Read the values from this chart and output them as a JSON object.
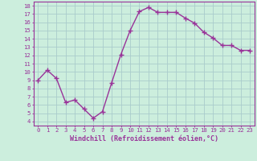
{
  "x": [
    0,
    1,
    2,
    3,
    4,
    5,
    6,
    7,
    8,
    9,
    10,
    11,
    12,
    13,
    14,
    15,
    16,
    17,
    18,
    19,
    20,
    21,
    22,
    23
  ],
  "y": [
    9.0,
    10.2,
    9.2,
    6.3,
    6.6,
    5.5,
    4.4,
    5.2,
    8.7,
    12.1,
    15.0,
    17.3,
    17.8,
    17.2,
    17.2,
    17.2,
    16.5,
    15.9,
    14.8,
    14.1,
    13.2,
    13.2,
    12.6,
    12.6
  ],
  "line_color": "#993399",
  "marker": "+",
  "marker_size": 4,
  "bg_color": "#cceedd",
  "grid_color": "#aacccc",
  "xlabel": "Windchill (Refroidissement éolien,°C)",
  "xlim": [
    -0.5,
    23.5
  ],
  "ylim": [
    3.5,
    18.5
  ],
  "yticks": [
    4,
    5,
    6,
    7,
    8,
    9,
    10,
    11,
    12,
    13,
    14,
    15,
    16,
    17,
    18
  ],
  "xticks": [
    0,
    1,
    2,
    3,
    4,
    5,
    6,
    7,
    8,
    9,
    10,
    11,
    12,
    13,
    14,
    15,
    16,
    17,
    18,
    19,
    20,
    21,
    22,
    23
  ],
  "tick_color": "#993399",
  "label_color": "#993399",
  "axis_color": "#993399",
  "xlabel_fontsize": 6.0,
  "tick_fontsize": 5.2,
  "linewidth": 1.0,
  "marker_linewidth": 1.0
}
